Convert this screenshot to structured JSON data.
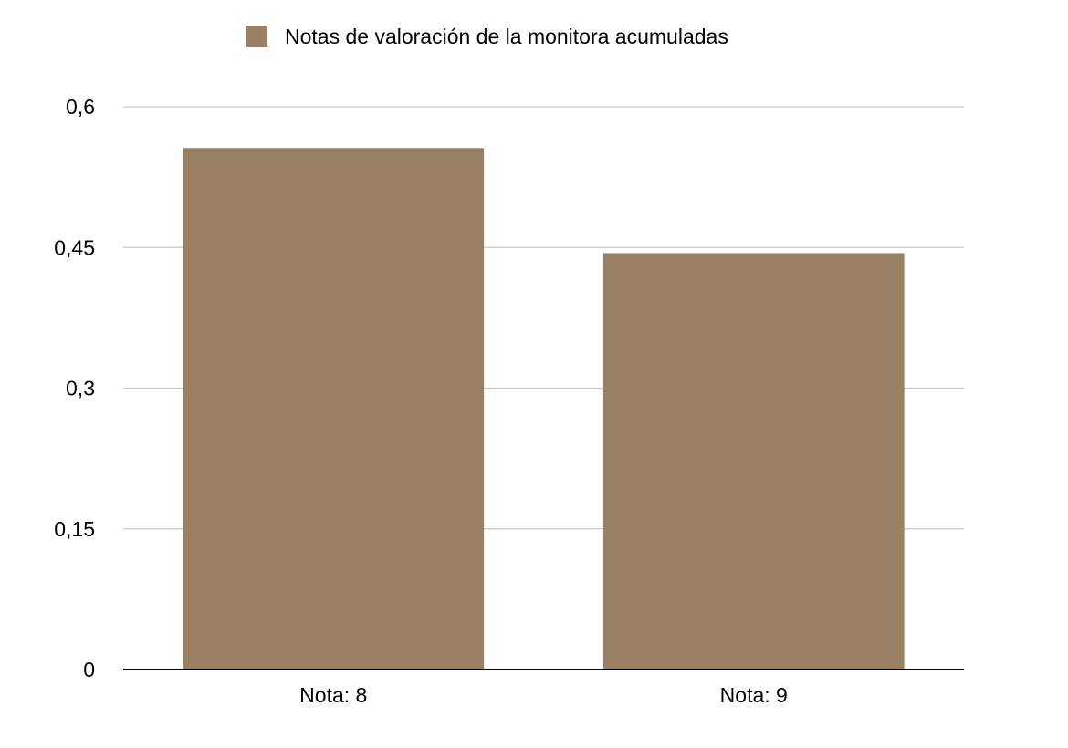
{
  "colors": {
    "bar": "#9a8064",
    "grid": "#c8c8c8",
    "axis": "#000000",
    "background": "#ffffff"
  },
  "chart_data": {
    "type": "bar",
    "categories": [
      "Nota: 8",
      "Nota: 9"
    ],
    "series": [
      {
        "name": "Notas de valoración de la monitora acumuladas",
        "values": [
          0.556,
          0.444
        ]
      }
    ],
    "yticks": [
      0,
      0.15,
      0.3,
      0.45,
      0.6
    ],
    "ytick_labels": [
      "0",
      "0,15",
      "0,3",
      "0,45",
      "0,6"
    ],
    "ylim": [
      0,
      0.6
    ],
    "grid": true,
    "legend_position": "top-center",
    "title": "",
    "xlabel": "",
    "ylabel": ""
  }
}
